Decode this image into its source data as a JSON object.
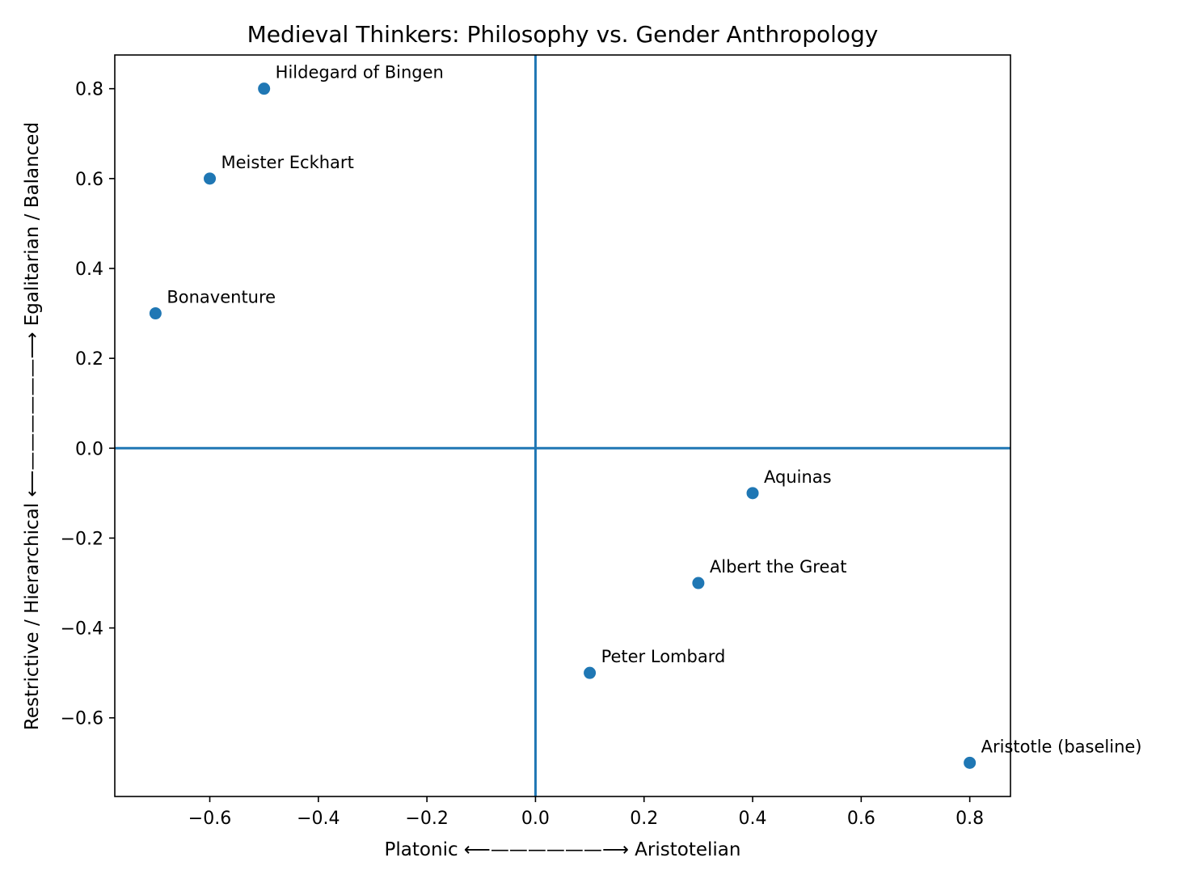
{
  "chart_data": {
    "type": "scatter",
    "title": "Medieval Thinkers: Philosophy vs. Gender Anthropology",
    "xlabel": "Platonic  ⟵——————⟶  Aristotelian",
    "ylabel": "Restrictive / Hierarchical  ⟵——————⟶  Egalitarian / Balanced",
    "xlim": [
      -0.775,
      0.875
    ],
    "ylim": [
      -0.775,
      0.875
    ],
    "xticks": [
      -0.6,
      -0.4,
      -0.2,
      0.0,
      0.2,
      0.4,
      0.6,
      0.8
    ],
    "xtick_labels": [
      "−0.6",
      "−0.4",
      "−0.2",
      "0.0",
      "0.2",
      "0.4",
      "0.6",
      "0.8"
    ],
    "yticks": [
      -0.6,
      -0.4,
      -0.2,
      0.0,
      0.2,
      0.4,
      0.6,
      0.8
    ],
    "ytick_labels": [
      "−0.6",
      "−0.4",
      "−0.2",
      "0.0",
      "0.2",
      "0.4",
      "0.6",
      "0.8"
    ],
    "reference_lines": {
      "x": 0,
      "y": 0
    },
    "grid": false,
    "color": "#1f77b4",
    "points": [
      {
        "label": "Hildegard of Bingen",
        "x": -0.5,
        "y": 0.8
      },
      {
        "label": "Meister Eckhart",
        "x": -0.6,
        "y": 0.6
      },
      {
        "label": "Bonaventure",
        "x": -0.7,
        "y": 0.3
      },
      {
        "label": "Aquinas",
        "x": 0.4,
        "y": -0.1
      },
      {
        "label": "Albert the Great",
        "x": 0.3,
        "y": -0.3
      },
      {
        "label": "Peter Lombard",
        "x": 0.1,
        "y": -0.5
      },
      {
        "label": "Aristotle (baseline)",
        "x": 0.8,
        "y": -0.7
      }
    ]
  }
}
